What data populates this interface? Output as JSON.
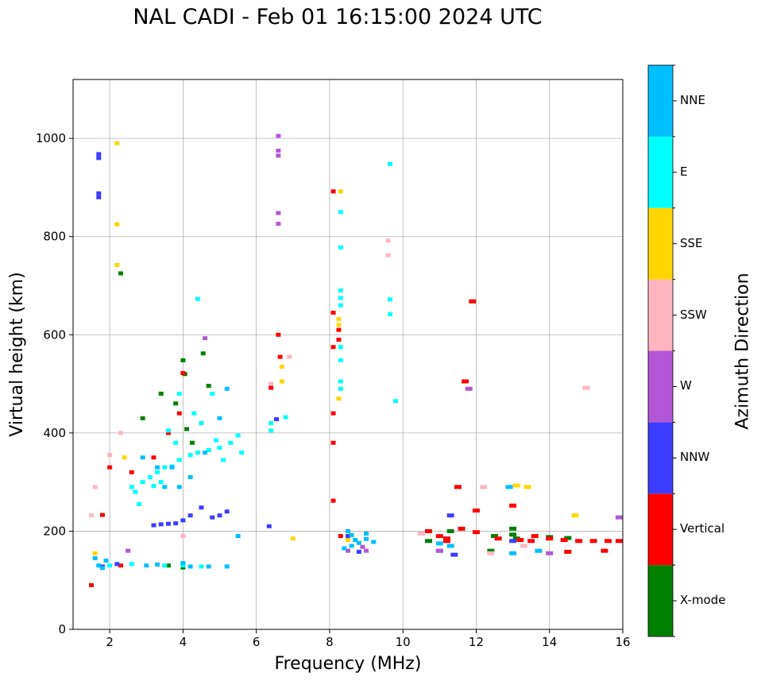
{
  "chart_data": {
    "type": "scatter",
    "title": "NAL CADI - Feb 01 16:15:00 2024 UTC",
    "xlabel": "Frequency (MHz)",
    "ylabel": "Virtual height (km)",
    "xlim": [
      1,
      16
    ],
    "ylim": [
      0,
      1120
    ],
    "xticks": [
      2,
      4,
      6,
      8,
      10,
      12,
      14,
      16
    ],
    "yticks": [
      0,
      200,
      400,
      600,
      800,
      1000
    ],
    "grid": true,
    "colorbar": {
      "label": "Azimuth Direction",
      "categories": [
        {
          "name": "X-mode",
          "color": "#008000"
        },
        {
          "name": "Vertical",
          "color": "#ff0000"
        },
        {
          "name": "NNW",
          "color": "#3c3cff"
        },
        {
          "name": "W",
          "color": "#b357d6"
        },
        {
          "name": "SSW",
          "color": "#ffb6c1"
        },
        {
          "name": "SSE",
          "color": "#ffd700"
        },
        {
          "name": "E",
          "color": "#00ffff"
        },
        {
          "name": "NNE",
          "color": "#00bfff"
        }
      ]
    },
    "series": [
      {
        "name": "X-mode",
        "points": [
          [
            4.0,
            548
          ],
          [
            4.05,
            520
          ],
          [
            4.1,
            408
          ],
          [
            4.55,
            562
          ],
          [
            4.7,
            496
          ],
          [
            2.9,
            430
          ],
          [
            3.4,
            480
          ],
          [
            13.0,
            205
          ],
          [
            13.0,
            193
          ],
          [
            14.5,
            186
          ],
          [
            10.7,
            180
          ],
          [
            12.4,
            160
          ],
          [
            13.1,
            185
          ],
          [
            11.3,
            200
          ],
          [
            2.3,
            725
          ],
          [
            3.8,
            460
          ],
          [
            4.25,
            380
          ],
          [
            12.5,
            190
          ],
          [
            14.0,
            188
          ],
          [
            3.6,
            130
          ],
          [
            4.0,
            126
          ]
        ]
      },
      {
        "name": "Vertical",
        "points": [
          [
            4.0,
            522
          ],
          [
            3.9,
            440
          ],
          [
            3.6,
            400
          ],
          [
            3.2,
            350
          ],
          [
            2.6,
            320
          ],
          [
            6.65,
            555
          ],
          [
            6.4,
            492
          ],
          [
            6.6,
            600
          ],
          [
            8.25,
            610
          ],
          [
            8.25,
            590
          ],
          [
            8.1,
            645
          ],
          [
            8.1,
            575
          ],
          [
            8.1,
            440
          ],
          [
            8.1,
            380
          ],
          [
            8.1,
            262
          ],
          [
            8.1,
            892
          ],
          [
            8.3,
            190
          ],
          [
            10.7,
            200
          ],
          [
            11.0,
            190
          ],
          [
            11.2,
            180
          ],
          [
            11.6,
            205
          ],
          [
            12.0,
            198
          ],
          [
            12.6,
            185
          ],
          [
            13.2,
            182
          ],
          [
            13.6,
            190
          ],
          [
            14.0,
            185
          ],
          [
            14.4,
            182
          ],
          [
            14.8,
            180
          ],
          [
            15.2,
            180
          ],
          [
            15.6,
            180
          ],
          [
            15.9,
            180
          ],
          [
            14.5,
            158
          ],
          [
            15.5,
            160
          ],
          [
            11.5,
            290
          ],
          [
            11.7,
            505
          ],
          [
            11.9,
            668
          ],
          [
            12.0,
            242
          ],
          [
            13.0,
            252
          ],
          [
            1.8,
            233
          ],
          [
            2.3,
            130
          ],
          [
            1.5,
            90
          ],
          [
            2.0,
            330
          ],
          [
            11.2,
            185
          ],
          [
            13.5,
            180
          ]
        ]
      },
      {
        "name": "NNW",
        "points": [
          [
            1.7,
            968
          ],
          [
            1.7,
            960
          ],
          [
            1.7,
            888
          ],
          [
            1.7,
            880
          ],
          [
            3.2,
            212
          ],
          [
            3.4,
            214
          ],
          [
            3.6,
            215
          ],
          [
            3.8,
            216
          ],
          [
            4.0,
            222
          ],
          [
            4.2,
            232
          ],
          [
            4.5,
            248
          ],
          [
            4.8,
            228
          ],
          [
            5.0,
            232
          ],
          [
            5.2,
            240
          ],
          [
            6.35,
            210
          ],
          [
            6.55,
            428
          ],
          [
            8.8,
            158
          ],
          [
            8.5,
            190
          ],
          [
            11.0,
            160
          ],
          [
            11.4,
            152
          ],
          [
            11.3,
            232
          ],
          [
            2.2,
            133
          ],
          [
            1.8,
            128
          ],
          [
            13.0,
            180
          ]
        ]
      },
      {
        "name": "W",
        "points": [
          [
            6.6,
            1005
          ],
          [
            6.6,
            975
          ],
          [
            6.6,
            965
          ],
          [
            6.6,
            848
          ],
          [
            6.6,
            826
          ],
          [
            4.6,
            593
          ],
          [
            8.5,
            160
          ],
          [
            8.9,
            168
          ],
          [
            9.0,
            160
          ],
          [
            11.8,
            490
          ],
          [
            15.9,
            228
          ],
          [
            14.0,
            155
          ],
          [
            11.0,
            160
          ],
          [
            2.5,
            160
          ]
        ]
      },
      {
        "name": "SSW",
        "points": [
          [
            6.4,
            500
          ],
          [
            6.9,
            555
          ],
          [
            9.6,
            792
          ],
          [
            9.6,
            762
          ],
          [
            12.2,
            290
          ],
          [
            12.4,
            155
          ],
          [
            15.0,
            492
          ],
          [
            4.0,
            190
          ],
          [
            2.3,
            400
          ],
          [
            2.0,
            355
          ],
          [
            1.6,
            290
          ],
          [
            1.5,
            232
          ],
          [
            10.5,
            195
          ],
          [
            13.3,
            170
          ]
        ]
      },
      {
        "name": "SSE",
        "points": [
          [
            2.2,
            990
          ],
          [
            2.2,
            825
          ],
          [
            2.2,
            742
          ],
          [
            6.7,
            535
          ],
          [
            6.7,
            505
          ],
          [
            8.25,
            632
          ],
          [
            8.25,
            620
          ],
          [
            8.25,
            470
          ],
          [
            8.3,
            892
          ],
          [
            8.5,
            182
          ],
          [
            7.0,
            185
          ],
          [
            13.1,
            293
          ],
          [
            13.4,
            290
          ],
          [
            14.7,
            232
          ],
          [
            1.6,
            155
          ],
          [
            2.4,
            350
          ]
        ]
      },
      {
        "name": "E",
        "points": [
          [
            8.3,
            850
          ],
          [
            8.3,
            778
          ],
          [
            8.3,
            690
          ],
          [
            8.3,
            675
          ],
          [
            8.3,
            660
          ],
          [
            8.3,
            575
          ],
          [
            8.3,
            548
          ],
          [
            8.3,
            505
          ],
          [
            8.3,
            490
          ],
          [
            9.65,
            948
          ],
          [
            9.65,
            672
          ],
          [
            9.65,
            642
          ],
          [
            9.8,
            465
          ],
          [
            6.8,
            432
          ],
          [
            6.4,
            405
          ],
          [
            6.4,
            420
          ],
          [
            2.7,
            280
          ],
          [
            2.9,
            300
          ],
          [
            3.1,
            310
          ],
          [
            3.3,
            320
          ],
          [
            3.5,
            330
          ],
          [
            3.7,
            332
          ],
          [
            3.9,
            345
          ],
          [
            4.2,
            355
          ],
          [
            4.4,
            360
          ],
          [
            4.7,
            365
          ],
          [
            5.0,
            370
          ],
          [
            5.3,
            380
          ],
          [
            5.5,
            395
          ],
          [
            5.6,
            360
          ],
          [
            5.1,
            345
          ],
          [
            4.9,
            385
          ],
          [
            4.5,
            420
          ],
          [
            4.3,
            440
          ],
          [
            3.8,
            380
          ],
          [
            3.4,
            300
          ],
          [
            3.2,
            292
          ],
          [
            2.6,
            290
          ],
          [
            3.6,
            405
          ],
          [
            3.9,
            480
          ],
          [
            4.8,
            480
          ],
          [
            4.4,
            673
          ],
          [
            2.8,
            255
          ],
          [
            2.0,
            130
          ],
          [
            3.5,
            130
          ],
          [
            4.0,
            130
          ],
          [
            4.5,
            128
          ],
          [
            2.6,
            133
          ]
        ]
      },
      {
        "name": "NNE",
        "points": [
          [
            5.2,
            490
          ],
          [
            5.0,
            430
          ],
          [
            4.6,
            360
          ],
          [
            4.2,
            310
          ],
          [
            3.9,
            290
          ],
          [
            2.9,
            350
          ],
          [
            3.3,
            330
          ],
          [
            3.7,
            330
          ],
          [
            8.5,
            200
          ],
          [
            8.6,
            192
          ],
          [
            8.7,
            182
          ],
          [
            8.8,
            176
          ],
          [
            9.0,
            184
          ],
          [
            9.2,
            178
          ],
          [
            9.0,
            195
          ],
          [
            8.4,
            165
          ],
          [
            8.6,
            170
          ],
          [
            13.0,
            155
          ],
          [
            12.9,
            290
          ],
          [
            13.7,
            160
          ],
          [
            11.3,
            170
          ],
          [
            11.0,
            175
          ],
          [
            1.7,
            130
          ],
          [
            1.6,
            145
          ],
          [
            1.8,
            125
          ],
          [
            1.9,
            140
          ],
          [
            3.0,
            130
          ],
          [
            3.3,
            132
          ],
          [
            4.0,
            135
          ],
          [
            4.2,
            128
          ],
          [
            5.2,
            128
          ],
          [
            4.7,
            128
          ],
          [
            3.5,
            290
          ],
          [
            5.5,
            190
          ]
        ]
      }
    ]
  }
}
